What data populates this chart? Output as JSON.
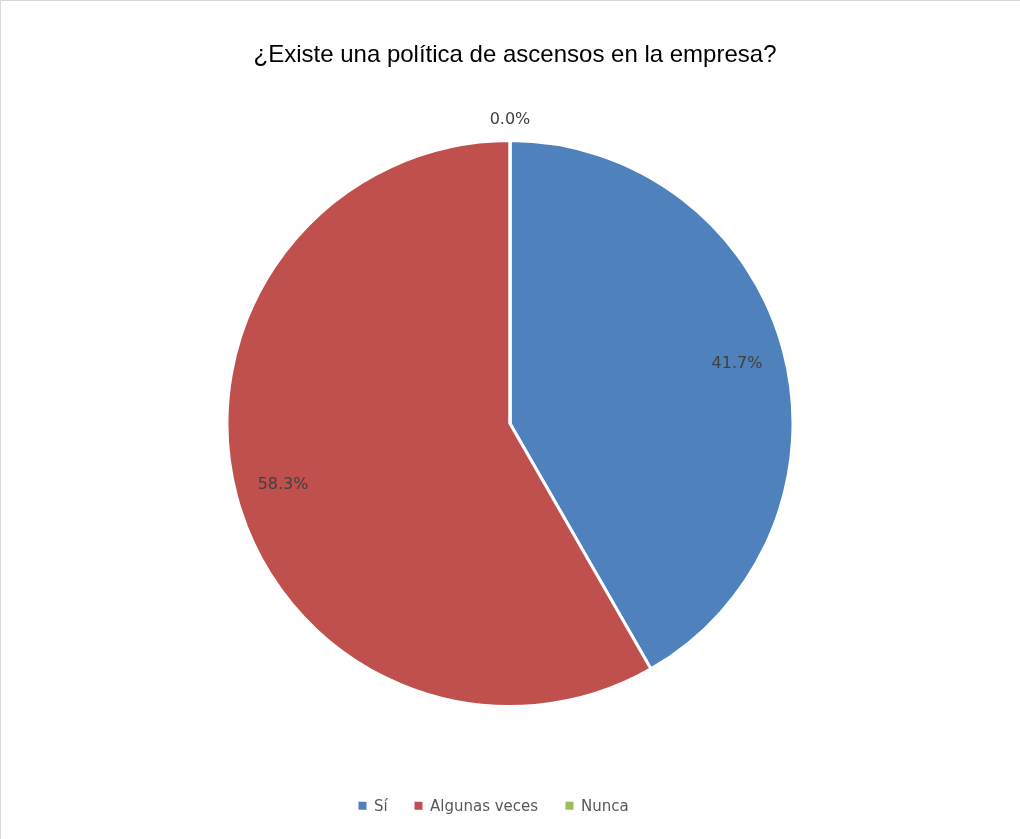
{
  "chart_data": {
    "type": "pie",
    "title": "¿Existe una política de ascensos en la empresa?",
    "categories": [
      "Sí",
      "Algunas veces",
      "Nunca"
    ],
    "values": [
      41.7,
      58.3,
      0.0
    ],
    "colors": [
      "#4f81bd",
      "#c0504d",
      "#9bbb59"
    ],
    "value_labels": [
      "41.7%",
      "58.3%",
      "0.0%"
    ],
    "legend": "bottom"
  }
}
